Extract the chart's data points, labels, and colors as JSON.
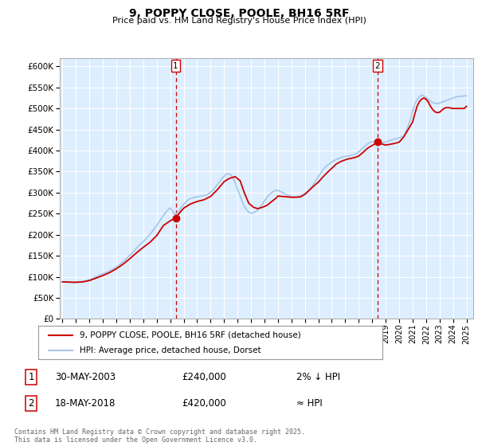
{
  "title": "9, POPPY CLOSE, POOLE, BH16 5RF",
  "subtitle": "Price paid vs. HM Land Registry's House Price Index (HPI)",
  "ylim": [
    0,
    620000
  ],
  "yticks": [
    0,
    50000,
    100000,
    150000,
    200000,
    250000,
    300000,
    350000,
    400000,
    450000,
    500000,
    550000,
    600000
  ],
  "xlim_start": 1994.8,
  "xlim_end": 2025.5,
  "xticks": [
    1995,
    1996,
    1997,
    1998,
    1999,
    2000,
    2001,
    2002,
    2003,
    2004,
    2005,
    2006,
    2007,
    2008,
    2009,
    2010,
    2011,
    2012,
    2013,
    2014,
    2015,
    2016,
    2017,
    2018,
    2019,
    2020,
    2021,
    2022,
    2023,
    2024,
    2025
  ],
  "hpi_color": "#a8c8e8",
  "price_color": "#cc0000",
  "marker1_x": 2003.41,
  "marker2_x": 2018.38,
  "marker1_y": 240000,
  "marker2_y": 420000,
  "transaction1_date": "30-MAY-2003",
  "transaction1_price": "£240,000",
  "transaction1_note": "2% ↓ HPI",
  "transaction2_date": "18-MAY-2018",
  "transaction2_price": "£420,000",
  "transaction2_note": "≈ HPI",
  "legend_label1": "9, POPPY CLOSE, POOLE, BH16 5RF (detached house)",
  "legend_label2": "HPI: Average price, detached house, Dorset",
  "copyright_text": "Contains HM Land Registry data © Crown copyright and database right 2025.\nThis data is licensed under the Open Government Licence v3.0.",
  "bg_color": "#ffffff",
  "plot_bg_color": "#ddeeff",
  "grid_color": "#ffffff",
  "hpi_data_x": [
    1995.0,
    1995.17,
    1995.33,
    1995.5,
    1995.67,
    1995.83,
    1996.0,
    1996.17,
    1996.33,
    1996.5,
    1996.67,
    1996.83,
    1997.0,
    1997.17,
    1997.33,
    1997.5,
    1997.67,
    1997.83,
    1998.0,
    1998.17,
    1998.33,
    1998.5,
    1998.67,
    1998.83,
    1999.0,
    1999.17,
    1999.33,
    1999.5,
    1999.67,
    1999.83,
    2000.0,
    2000.17,
    2000.33,
    2000.5,
    2000.67,
    2000.83,
    2001.0,
    2001.17,
    2001.33,
    2001.5,
    2001.67,
    2001.83,
    2002.0,
    2002.17,
    2002.33,
    2002.5,
    2002.67,
    2002.83,
    2003.0,
    2003.17,
    2003.33,
    2003.5,
    2003.67,
    2003.83,
    2004.0,
    2004.17,
    2004.33,
    2004.5,
    2004.67,
    2004.83,
    2005.0,
    2005.17,
    2005.33,
    2005.5,
    2005.67,
    2005.83,
    2006.0,
    2006.17,
    2006.33,
    2006.5,
    2006.67,
    2006.83,
    2007.0,
    2007.17,
    2007.33,
    2007.5,
    2007.67,
    2007.83,
    2008.0,
    2008.17,
    2008.33,
    2008.5,
    2008.67,
    2008.83,
    2009.0,
    2009.17,
    2009.33,
    2009.5,
    2009.67,
    2009.83,
    2010.0,
    2010.17,
    2010.33,
    2010.5,
    2010.67,
    2010.83,
    2011.0,
    2011.17,
    2011.33,
    2011.5,
    2011.67,
    2011.83,
    2012.0,
    2012.17,
    2012.33,
    2012.5,
    2012.67,
    2012.83,
    2013.0,
    2013.17,
    2013.33,
    2013.5,
    2013.67,
    2013.83,
    2014.0,
    2014.17,
    2014.33,
    2014.5,
    2014.67,
    2014.83,
    2015.0,
    2015.17,
    2015.33,
    2015.5,
    2015.67,
    2015.83,
    2016.0,
    2016.17,
    2016.33,
    2016.5,
    2016.67,
    2016.83,
    2017.0,
    2017.17,
    2017.33,
    2017.5,
    2017.67,
    2017.83,
    2018.0,
    2018.17,
    2018.33,
    2018.5,
    2018.67,
    2018.83,
    2019.0,
    2019.17,
    2019.33,
    2019.5,
    2019.67,
    2019.83,
    2020.0,
    2020.17,
    2020.33,
    2020.5,
    2020.67,
    2020.83,
    2021.0,
    2021.17,
    2021.33,
    2021.5,
    2021.67,
    2021.83,
    2022.0,
    2022.17,
    2022.33,
    2022.5,
    2022.67,
    2022.83,
    2023.0,
    2023.17,
    2023.33,
    2023.5,
    2023.67,
    2023.83,
    2024.0,
    2024.17,
    2024.33,
    2024.5,
    2024.67,
    2024.83,
    2025.0
  ],
  "hpi_data_y": [
    88000,
    87500,
    87000,
    86500,
    86200,
    86000,
    86500,
    87000,
    88000,
    89000,
    90000,
    91500,
    93000,
    95000,
    97500,
    100000,
    102500,
    105000,
    107000,
    109000,
    111000,
    114000,
    117000,
    120000,
    123000,
    127000,
    131000,
    136000,
    141000,
    146000,
    151000,
    156000,
    162000,
    168000,
    174000,
    179000,
    184000,
    189000,
    195000,
    201000,
    208000,
    215000,
    222000,
    230000,
    238000,
    246000,
    253000,
    259000,
    264000,
    256000,
    248000,
    251000,
    258000,
    265000,
    272000,
    278000,
    283000,
    286000,
    288000,
    289000,
    290000,
    291000,
    292000,
    293000,
    294000,
    297000,
    301000,
    306000,
    312000,
    319000,
    326000,
    333000,
    339000,
    344000,
    345000,
    342000,
    335000,
    323000,
    308000,
    294000,
    280000,
    268000,
    259000,
    254000,
    251000,
    252000,
    255000,
    259000,
    265000,
    272000,
    280000,
    288000,
    294000,
    299000,
    303000,
    305000,
    305000,
    303000,
    300000,
    297000,
    295000,
    293000,
    291000,
    290000,
    290000,
    291000,
    292000,
    294000,
    297000,
    301000,
    306000,
    313000,
    321000,
    329000,
    338000,
    346000,
    354000,
    360000,
    365000,
    369000,
    373000,
    376000,
    379000,
    381000,
    383000,
    385000,
    386000,
    387000,
    388000,
    389000,
    391000,
    393000,
    397000,
    402000,
    407000,
    412000,
    416000,
    419000,
    421000,
    422000,
    421000,
    420000,
    419000,
    419000,
    420000,
    422000,
    424000,
    426000,
    427000,
    429000,
    430000,
    432000,
    434000,
    444000,
    458000,
    474000,
    493000,
    511000,
    521000,
    528000,
    532000,
    530000,
    526000,
    521000,
    517000,
    514000,
    512000,
    512000,
    513000,
    515000,
    517000,
    519000,
    521000,
    523000,
    525000,
    527000,
    528000,
    529000,
    529000,
    530000,
    530000
  ],
  "price_data_x": [
    1995.0,
    1995.5,
    1996.0,
    1996.5,
    1997.0,
    1997.5,
    1998.0,
    1998.5,
    1999.0,
    1999.5,
    2000.0,
    2000.5,
    2001.0,
    2001.5,
    2002.0,
    2002.5,
    2003.0,
    2003.41,
    2003.7,
    2004.0,
    2004.5,
    2005.0,
    2005.5,
    2006.0,
    2006.5,
    2007.0,
    2007.4,
    2007.83,
    2008.2,
    2008.5,
    2008.83,
    2009.2,
    2009.5,
    2009.83,
    2010.2,
    2010.5,
    2010.83,
    2011.0,
    2011.33,
    2011.67,
    2012.0,
    2012.33,
    2012.67,
    2013.0,
    2013.33,
    2013.67,
    2014.0,
    2014.33,
    2014.67,
    2015.0,
    2015.33,
    2015.67,
    2016.0,
    2016.33,
    2016.67,
    2017.0,
    2017.33,
    2017.67,
    2018.0,
    2018.38,
    2018.67,
    2019.0,
    2019.33,
    2019.67,
    2020.0,
    2020.33,
    2020.67,
    2021.0,
    2021.17,
    2021.33,
    2021.5,
    2021.67,
    2021.83,
    2022.0,
    2022.17,
    2022.33,
    2022.5,
    2022.67,
    2022.83,
    2023.0,
    2023.17,
    2023.33,
    2023.5,
    2023.67,
    2023.83,
    2024.0,
    2024.17,
    2024.33,
    2024.5,
    2024.67,
    2024.83,
    2025.0
  ],
  "price_data_y": [
    88000,
    87500,
    87000,
    88000,
    91000,
    97000,
    103000,
    110000,
    119000,
    130000,
    143000,
    157000,
    170000,
    182000,
    198000,
    222000,
    233000,
    240000,
    252000,
    263000,
    273000,
    279000,
    283000,
    291000,
    307000,
    326000,
    334000,
    338000,
    328000,
    300000,
    275000,
    265000,
    262000,
    265000,
    270000,
    278000,
    286000,
    292000,
    291000,
    290000,
    289000,
    289000,
    290000,
    296000,
    306000,
    316000,
    325000,
    337000,
    348000,
    358000,
    368000,
    374000,
    378000,
    381000,
    383000,
    387000,
    396000,
    406000,
    412000,
    420000,
    416000,
    413000,
    415000,
    417000,
    420000,
    432000,
    450000,
    468000,
    488000,
    505000,
    516000,
    522000,
    525000,
    522000,
    515000,
    505000,
    497000,
    492000,
    490000,
    491000,
    496000,
    500000,
    502000,
    502000,
    501000,
    500000,
    500000,
    500000,
    500000,
    500000,
    500000,
    505000
  ]
}
